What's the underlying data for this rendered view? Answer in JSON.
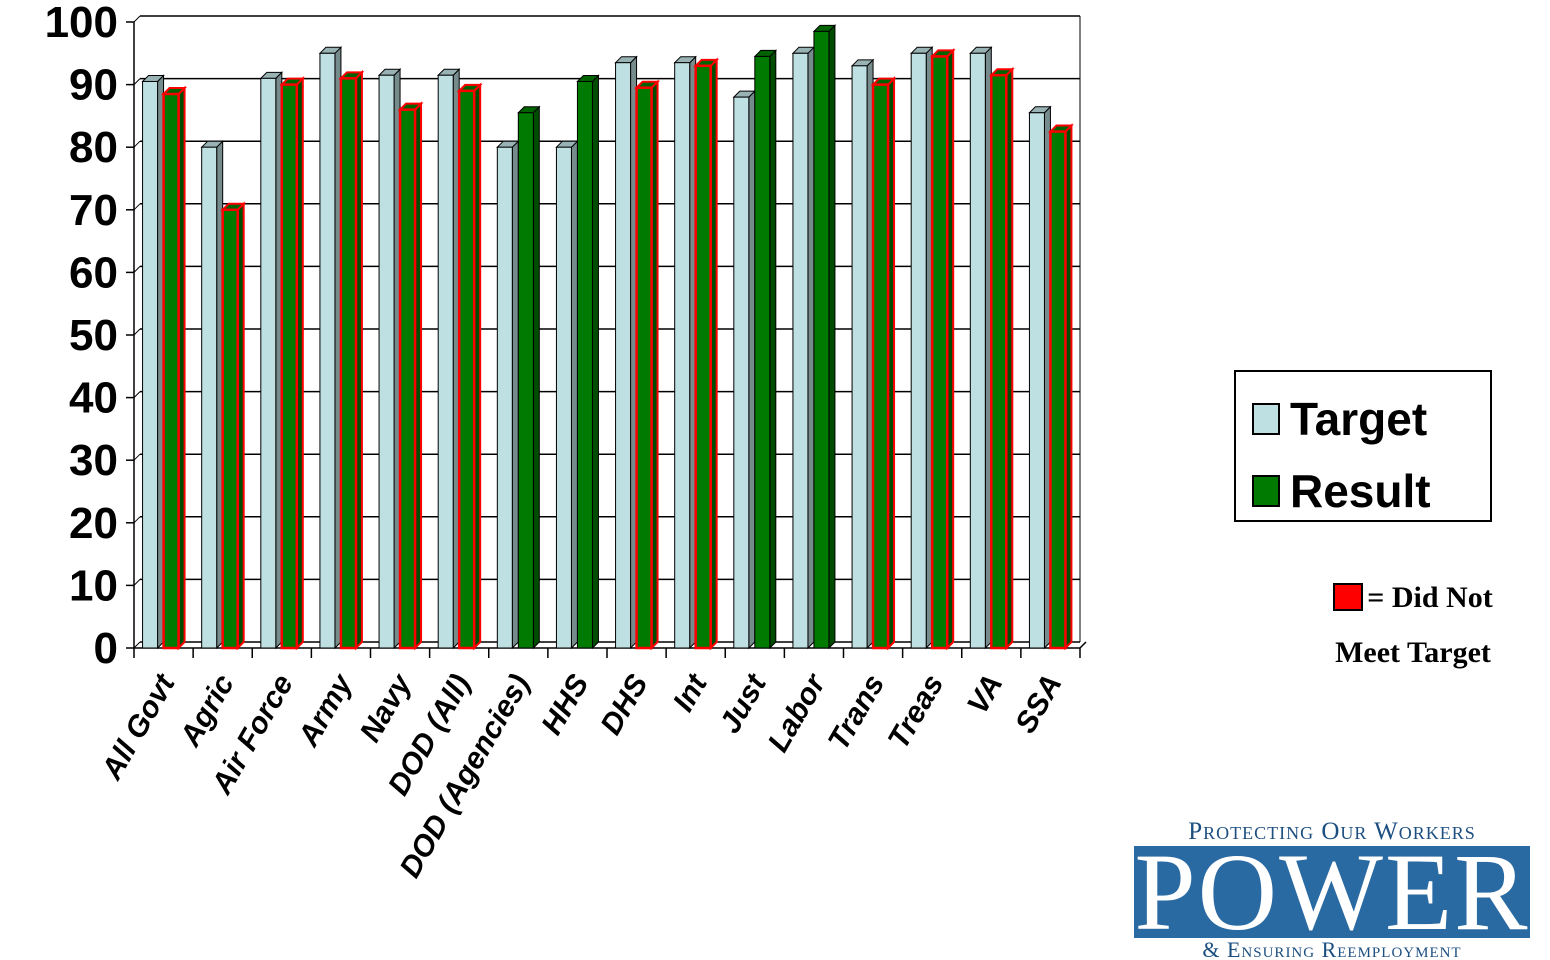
{
  "chart_data": {
    "type": "bar",
    "categories": [
      "All Govt",
      "Agric",
      "Air Force",
      "Army",
      "Navy",
      "DOD (All)",
      "DOD (Agencies)",
      "HHS",
      "DHS",
      "Int",
      "Just",
      "Labor",
      "Trans",
      "Treas",
      "VA",
      "SSA"
    ],
    "series": [
      {
        "name": "Target",
        "values": [
          90.5,
          80,
          91,
          95,
          91.5,
          91.5,
          80,
          80,
          93.5,
          93.5,
          88,
          95,
          93,
          95,
          95,
          85.5
        ]
      },
      {
        "name": "Result",
        "values": [
          88.5,
          70,
          90,
          91,
          86,
          89,
          85.5,
          90.5,
          89.5,
          93,
          94.5,
          98.5,
          90,
          94.5,
          91.5,
          82.5
        ]
      }
    ],
    "did_not_meet_target": [
      true,
      true,
      true,
      true,
      true,
      true,
      false,
      false,
      true,
      true,
      false,
      false,
      true,
      true,
      true,
      true
    ],
    "yticks": [
      "0",
      "10",
      "20",
      "30",
      "40",
      "50",
      "60",
      "70",
      "80",
      "90",
      "100"
    ],
    "ylim": [
      0,
      100
    ],
    "grid": true,
    "legend_position": "right",
    "colors": {
      "target": "#bfe0e2",
      "result": "#007a00",
      "missed_outline": "#ff0000"
    }
  },
  "legend": {
    "target_label": "Target",
    "result_label": "Result"
  },
  "note": {
    "line1": "= Did Not",
    "line2": "Meet Target"
  },
  "logo": {
    "top": "Protecting Our Workers",
    "main": "POWER",
    "bottom": "& Ensuring Reemployment"
  }
}
